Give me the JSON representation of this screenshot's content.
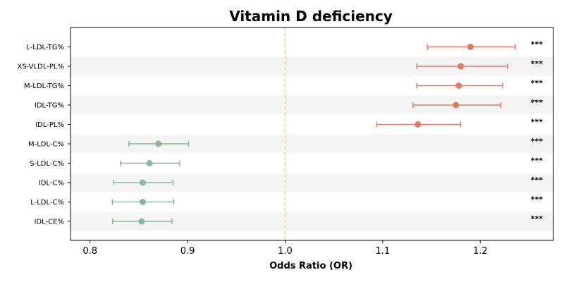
{
  "chart_data": {
    "type": "forest",
    "title": "Vitamin D deficiency",
    "xlabel": "Odds Ratio (OR)",
    "xlim": [
      0.78,
      1.275
    ],
    "xticks": [
      "0.8",
      "0.9",
      "1.0",
      "1.1",
      "1.2"
    ],
    "xtick_values": [
      0.8,
      0.9,
      1.0,
      1.1,
      1.2
    ],
    "reference_line": 1.0,
    "colors": {
      "positive": "#e07b62",
      "negative": "#86b99e",
      "reference": "#f0cd8c",
      "band": "#f5f5f5",
      "axis": "#000000"
    },
    "rows": [
      {
        "label": "L-LDL-TG%",
        "or": 1.19,
        "lo": 1.146,
        "hi": 1.236,
        "sig": "***"
      },
      {
        "label": "XS-VLDL-PL%",
        "or": 1.18,
        "lo": 1.135,
        "hi": 1.228,
        "sig": "***"
      },
      {
        "label": "M-LDL-TG%",
        "or": 1.178,
        "lo": 1.135,
        "hi": 1.223,
        "sig": "***"
      },
      {
        "label": "IDL-TG%",
        "or": 1.175,
        "lo": 1.131,
        "hi": 1.221,
        "sig": "***"
      },
      {
        "label": "IDL-PL%",
        "or": 1.136,
        "lo": 1.094,
        "hi": 1.18,
        "sig": "***"
      },
      {
        "label": "M-LDL-C%",
        "or": 0.87,
        "lo": 0.84,
        "hi": 0.901,
        "sig": "***"
      },
      {
        "label": "S-LDL-C%",
        "or": 0.861,
        "lo": 0.831,
        "hi": 0.892,
        "sig": "***"
      },
      {
        "label": "IDL-C%",
        "or": 0.854,
        "lo": 0.824,
        "hi": 0.885,
        "sig": "***"
      },
      {
        "label": "L-LDL-C%",
        "or": 0.854,
        "lo": 0.823,
        "hi": 0.886,
        "sig": "***"
      },
      {
        "label": "IDL-CE%",
        "or": 0.853,
        "lo": 0.823,
        "hi": 0.884,
        "sig": "***"
      }
    ]
  }
}
